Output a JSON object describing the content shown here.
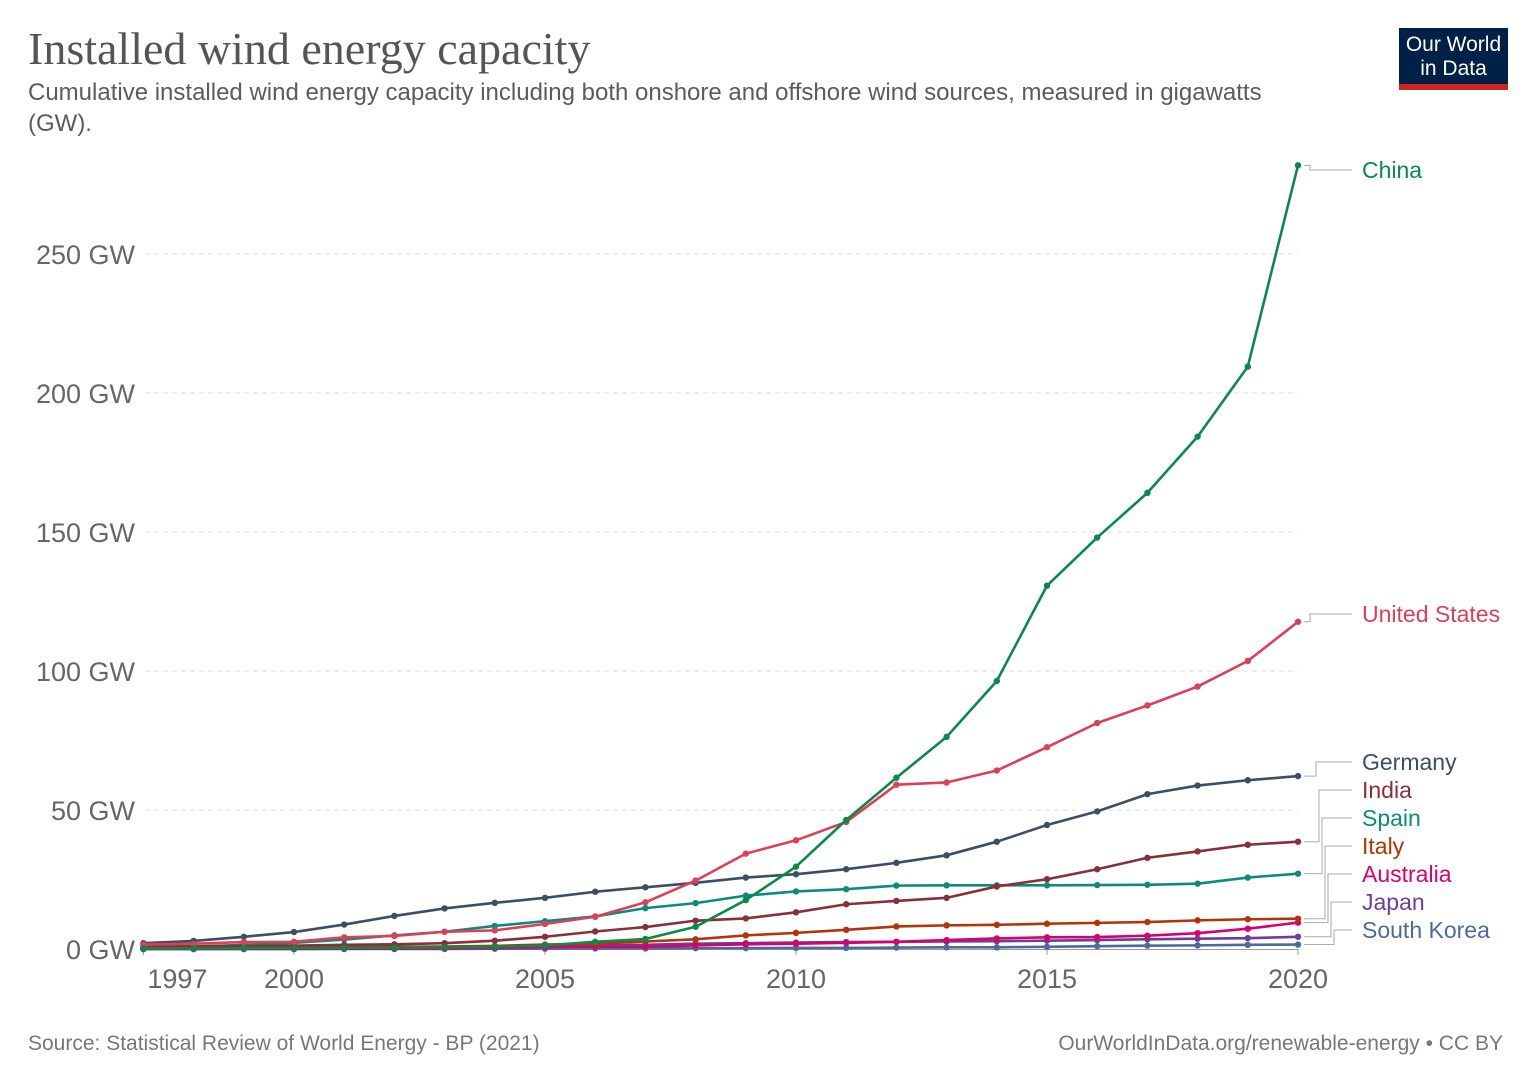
{
  "header": {
    "title": "Installed wind energy capacity",
    "subtitle": "Cumulative installed wind energy capacity including both onshore and offshore wind sources, measured in gigawatts (GW).",
    "logo": "Our World in Data"
  },
  "footer": {
    "source": "Source: Statistical Review of World Energy - BP (2021)",
    "license": "OurWorldInData.org/renewable-energy • CC BY"
  },
  "chart_data": {
    "type": "line",
    "title": "Installed wind energy capacity",
    "unit": "GW",
    "xlim": [
      1997,
      2020
    ],
    "ylim": [
      0,
      280
    ],
    "grid": "horizontal dashed",
    "legend": "right (inline labels)",
    "x_ticks": [
      "1997",
      "2000",
      "2005",
      "2010",
      "2015",
      "2020"
    ],
    "y_ticks": [
      "0 GW",
      "50 GW",
      "100 GW",
      "150 GW",
      "200 GW",
      "250 GW"
    ],
    "x": [
      1997,
      1998,
      1999,
      2000,
      2001,
      2002,
      2003,
      2004,
      2005,
      2006,
      2007,
      2008,
      2009,
      2010,
      2011,
      2012,
      2013,
      2014,
      2015,
      2016,
      2017,
      2018,
      2019,
      2020
    ],
    "series": [
      {
        "name": "China",
        "color": "#0a8a4a",
        "values": [
          0.2,
          0.2,
          0.3,
          0.3,
          0.4,
          0.5,
          0.6,
          0.8,
          1.3,
          2.6,
          3.6,
          8.0,
          17.6,
          29.6,
          46.4,
          61.6,
          76.3,
          96.4,
          130.7,
          148.0,
          164.1,
          184.3,
          209.5,
          281.9
        ]
      },
      {
        "name": "United States",
        "color": "#dc3f58",
        "values": [
          1.6,
          1.9,
          2.5,
          2.6,
          4.2,
          4.7,
          6.2,
          6.7,
          9.0,
          11.6,
          16.8,
          24.6,
          34.3,
          39.1,
          45.7,
          59.1,
          59.9,
          64.2,
          72.6,
          81.3,
          87.6,
          94.4,
          103.6,
          117.7
        ]
      },
      {
        "name": "Germany",
        "color": "#3c4e66",
        "values": [
          2.1,
          2.9,
          4.4,
          6.1,
          8.8,
          11.9,
          14.6,
          16.6,
          18.4,
          20.6,
          22.2,
          23.8,
          25.7,
          26.9,
          28.7,
          31.0,
          33.7,
          38.6,
          44.6,
          49.5,
          55.7,
          58.8,
          60.7,
          62.2
        ]
      },
      {
        "name": "India",
        "color": "#883039",
        "values": [
          0.9,
          1.0,
          1.1,
          1.2,
          1.5,
          1.7,
          2.1,
          3.0,
          4.4,
          6.3,
          7.9,
          10.2,
          11.0,
          13.2,
          16.1,
          17.3,
          18.4,
          22.5,
          25.1,
          28.7,
          32.8,
          35.1,
          37.5,
          38.6
        ]
      },
      {
        "name": "Spain",
        "color": "#0e8a7c",
        "values": [
          0.4,
          0.8,
          1.5,
          2.2,
          3.4,
          4.9,
          6.2,
          8.3,
          10.0,
          11.7,
          14.7,
          16.5,
          19.2,
          20.7,
          21.5,
          22.8,
          22.9,
          22.9,
          22.9,
          23.0,
          23.1,
          23.5,
          25.7,
          27.1
        ]
      },
      {
        "name": "Italy",
        "color": "#b13507",
        "values": [
          0.1,
          0.2,
          0.3,
          0.4,
          0.7,
          0.8,
          0.9,
          1.1,
          1.6,
          1.9,
          2.7,
          3.5,
          4.9,
          5.8,
          6.9,
          8.1,
          8.5,
          8.7,
          9.1,
          9.4,
          9.7,
          10.3,
          10.7,
          10.9
        ]
      },
      {
        "name": "Australia",
        "color": "#d6006e",
        "values": [
          0.0,
          0.0,
          0.0,
          0.0,
          0.1,
          0.1,
          0.2,
          0.4,
          0.7,
          0.8,
          0.8,
          1.3,
          1.7,
          1.9,
          2.2,
          2.6,
          3.2,
          3.8,
          4.2,
          4.3,
          4.8,
          5.7,
          7.3,
          9.5
        ]
      },
      {
        "name": "Japan",
        "color": "#6d3e91",
        "values": [
          0.0,
          0.0,
          0.1,
          0.1,
          0.3,
          0.3,
          0.7,
          0.9,
          1.1,
          1.3,
          1.5,
          1.9,
          2.1,
          2.3,
          2.5,
          2.6,
          2.7,
          2.8,
          3.0,
          3.2,
          3.5,
          3.7,
          3.9,
          4.4
        ]
      },
      {
        "name": "South Korea",
        "color": "#4c6a9c",
        "values": [
          0.0,
          0.0,
          0.0,
          0.0,
          0.0,
          0.0,
          0.0,
          0.1,
          0.1,
          0.2,
          0.2,
          0.3,
          0.3,
          0.4,
          0.4,
          0.5,
          0.6,
          0.6,
          0.8,
          1.0,
          1.2,
          1.3,
          1.5,
          1.6
        ]
      }
    ]
  }
}
